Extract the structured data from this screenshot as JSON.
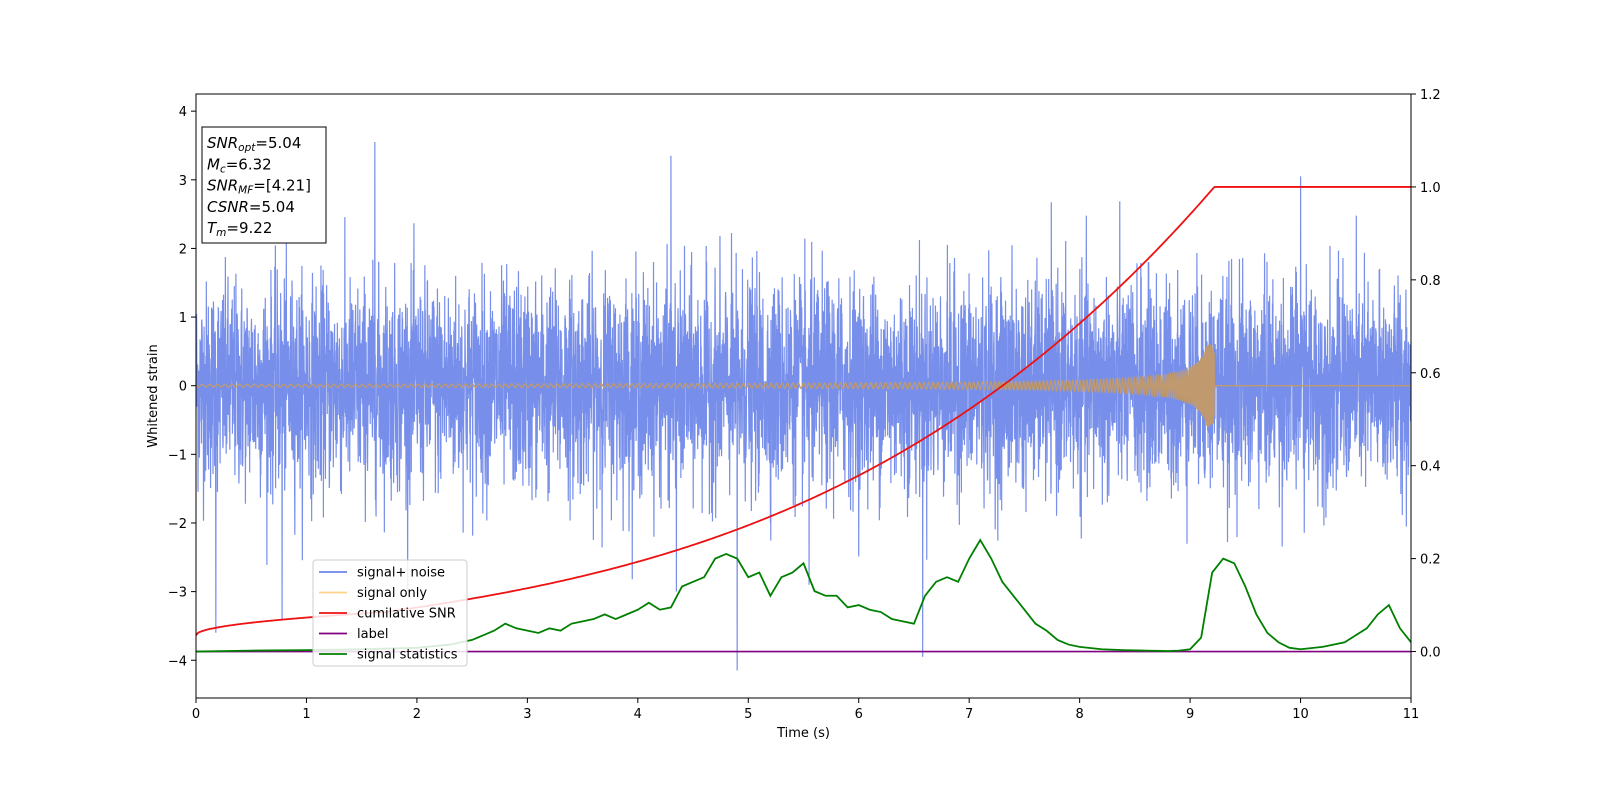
{
  "chart_data": {
    "type": "line",
    "xlabel": "Time (s)",
    "ylabel": "Whitened strain",
    "xlim": [
      0,
      11
    ],
    "ylim": [
      -4.55,
      4.25
    ],
    "y2lim": [
      -0.1,
      1.2
    ],
    "x_ticks": [
      0,
      1,
      2,
      3,
      4,
      5,
      6,
      7,
      8,
      9,
      10,
      11
    ],
    "y_ticks": [
      -4,
      -3,
      -2,
      -1,
      0,
      1,
      2,
      3,
      4
    ],
    "y_tick_labels": [
      "−4",
      "−3",
      "−2",
      "−1",
      "0",
      "1",
      "2",
      "3",
      "4"
    ],
    "y2_ticks": [
      0.0,
      0.2,
      0.4,
      0.6,
      0.8,
      1.0,
      1.2
    ],
    "y2_tick_labels": [
      "0.0",
      "0.2",
      "0.4",
      "0.6",
      "0.8",
      "1.0",
      "1.2"
    ],
    "grid": false,
    "legend_placement": "lower-left",
    "annotation": {
      "lines": [
        {
          "label": "SNR",
          "sub": "opt",
          "value": "=5.04"
        },
        {
          "label": "M",
          "sub": "c",
          "value": "=6.32"
        },
        {
          "label": "SNR",
          "sub": "MF",
          "value": "=[4.21]"
        },
        {
          "label": "CSNR",
          "sub": "",
          "value": "=5.04"
        },
        {
          "label": "T",
          "sub": "m",
          "value": "=9.22"
        }
      ]
    },
    "merger_time": 9.22,
    "series": [
      {
        "name": "signal+ noise",
        "color": "#6b86e8",
        "axis": "left",
        "kind": "noise",
        "sigma": 0.75,
        "spikes": [
          [
            0.18,
            -3.6
          ],
          [
            0.78,
            -3.4
          ],
          [
            1.62,
            3.55
          ],
          [
            4.3,
            3.35
          ],
          [
            4.9,
            -4.15
          ],
          [
            6.58,
            -3.95
          ],
          [
            10.0,
            3.05
          ],
          [
            4.35,
            -3.0
          ],
          [
            5.55,
            -2.9
          ]
        ]
      },
      {
        "name": "signal only",
        "color": "#ffc66e",
        "axis": "left",
        "kind": "chirp",
        "amp_start": 0.02,
        "amp_end": 0.6
      },
      {
        "name": "cumilative SNR",
        "color": "#ee1111",
        "axis": "right",
        "kind": "cumulative",
        "start": 0.035,
        "end": 1.0
      },
      {
        "name": "label",
        "color": "#800080",
        "axis": "right",
        "kind": "constant",
        "value": 0.0
      },
      {
        "name": "signal statistics",
        "color": "#008000",
        "axis": "right",
        "kind": "points",
        "x": [
          0,
          0.5,
          1,
          1.5,
          2,
          2.3,
          2.5,
          2.6,
          2.7,
          2.8,
          2.9,
          3.0,
          3.1,
          3.2,
          3.3,
          3.4,
          3.5,
          3.6,
          3.7,
          3.8,
          3.9,
          4.0,
          4.1,
          4.2,
          4.3,
          4.4,
          4.5,
          4.6,
          4.7,
          4.8,
          4.9,
          5.0,
          5.1,
          5.2,
          5.3,
          5.4,
          5.5,
          5.6,
          5.7,
          5.8,
          5.9,
          6.0,
          6.1,
          6.2,
          6.3,
          6.4,
          6.5,
          6.6,
          6.7,
          6.8,
          6.9,
          7.0,
          7.1,
          7.2,
          7.3,
          7.4,
          7.5,
          7.6,
          7.7,
          7.8,
          7.9,
          8.0,
          8.2,
          8.4,
          8.6,
          8.8,
          8.9,
          9.0,
          9.1,
          9.2,
          9.3,
          9.4,
          9.5,
          9.6,
          9.7,
          9.8,
          9.9,
          10.0,
          10.2,
          10.4,
          10.5,
          10.6,
          10.7,
          10.8,
          10.9,
          11.0
        ],
        "y": [
          0.0,
          0.002,
          0.003,
          0.005,
          0.008,
          0.015,
          0.025,
          0.035,
          0.045,
          0.06,
          0.05,
          0.045,
          0.04,
          0.05,
          0.045,
          0.06,
          0.065,
          0.07,
          0.08,
          0.07,
          0.08,
          0.09,
          0.105,
          0.09,
          0.095,
          0.14,
          0.15,
          0.16,
          0.2,
          0.21,
          0.2,
          0.16,
          0.17,
          0.12,
          0.16,
          0.17,
          0.19,
          0.13,
          0.12,
          0.12,
          0.095,
          0.1,
          0.09,
          0.085,
          0.07,
          0.065,
          0.06,
          0.12,
          0.15,
          0.16,
          0.15,
          0.2,
          0.24,
          0.2,
          0.15,
          0.12,
          0.09,
          0.06,
          0.045,
          0.025,
          0.015,
          0.01,
          0.005,
          0.003,
          0.002,
          0.001,
          0.002,
          0.005,
          0.03,
          0.17,
          0.2,
          0.19,
          0.14,
          0.08,
          0.04,
          0.02,
          0.008,
          0.005,
          0.01,
          0.02,
          0.035,
          0.05,
          0.08,
          0.1,
          0.05,
          0.02
        ]
      }
    ]
  }
}
